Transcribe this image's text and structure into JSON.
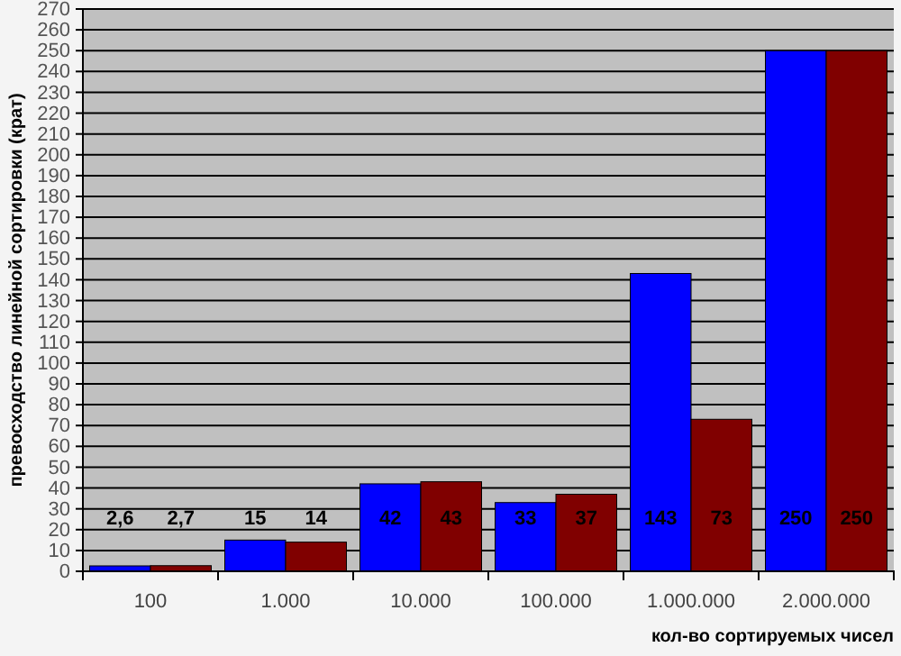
{
  "chart_data": {
    "type": "bar",
    "ylabel": "превосходство линейной сортировки (крат)",
    "xlabel": "кол-во сортируемых чисел",
    "categories": [
      "100",
      "1.000",
      "10.000",
      "100.000",
      "1.000.000",
      "2.000.000"
    ],
    "series": [
      {
        "color": "#0000ff",
        "values": [
          2.6,
          15,
          42,
          33,
          143,
          250
        ],
        "value_labels": [
          "2,6",
          "15",
          "42",
          "33",
          "143",
          "250"
        ]
      },
      {
        "color": "#800000",
        "values": [
          2.7,
          14,
          43,
          37,
          73,
          250
        ],
        "value_labels": [
          "2,7",
          "14",
          "43",
          "37",
          "73",
          "250"
        ]
      }
    ],
    "ylim": [
      0,
      270
    ],
    "yticks": [
      0,
      10,
      20,
      30,
      40,
      50,
      60,
      70,
      80,
      90,
      100,
      110,
      120,
      130,
      140,
      150,
      160,
      170,
      180,
      190,
      200,
      210,
      220,
      230,
      240,
      250,
      260,
      270
    ],
    "grid": "y"
  }
}
